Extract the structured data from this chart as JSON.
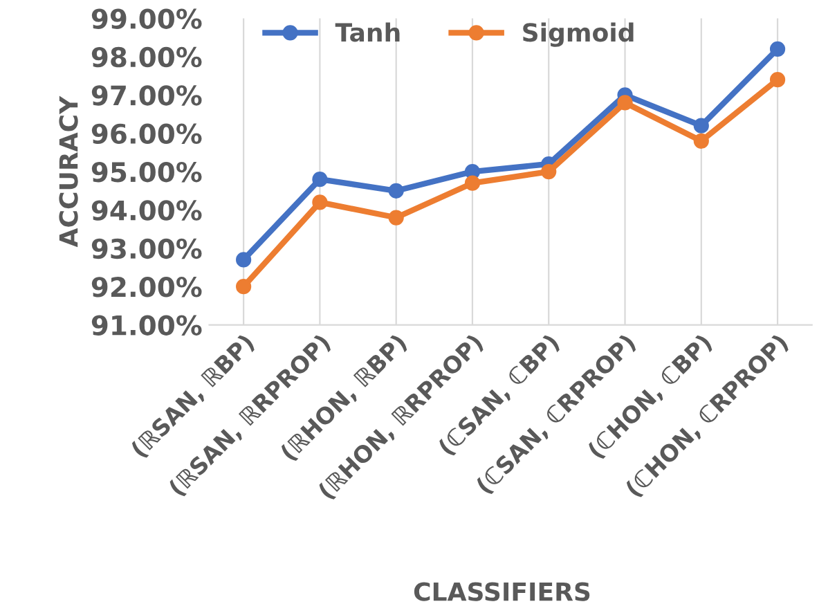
{
  "chart_data": {
    "type": "line",
    "xlabel": "CLASSIFIERS",
    "ylabel": "ACCURACY",
    "categories": [
      "(ℝSAN, ℝBP)",
      "(ℝSAN, ℝRPROP)",
      "(ℝHON, ℝBP)",
      "(ℝHON, ℝRPROP)",
      "(ℂSAN, ℂBP)",
      "(ℂSAN, ℂRPROP)",
      "(ℂHON, ℂBP)",
      "(ℂHON, ℂRPROP)"
    ],
    "series": [
      {
        "name": "Tanh",
        "color": "#4472c4",
        "values": [
          92.7,
          94.8,
          94.5,
          95.0,
          95.2,
          97.0,
          96.2,
          98.2
        ]
      },
      {
        "name": "Sigmoid",
        "color": "#ed7d31",
        "values": [
          92.0,
          94.2,
          93.8,
          94.7,
          95.0,
          96.8,
          95.8,
          97.4
        ]
      }
    ],
    "ylim": [
      91,
      99
    ],
    "yticks": [
      {
        "value": 91,
        "label": "91.00%"
      },
      {
        "value": 92,
        "label": "92.00%"
      },
      {
        "value": 93,
        "label": "93.00%"
      },
      {
        "value": 94,
        "label": "94.00%"
      },
      {
        "value": 95,
        "label": "95.00%"
      },
      {
        "value": 96,
        "label": "96.00%"
      },
      {
        "value": 97,
        "label": "97.00%"
      },
      {
        "value": 98,
        "label": "98.00%"
      },
      {
        "value": 99,
        "label": "99.00%"
      }
    ],
    "grid": "x",
    "legend": "top",
    "marker": "circle",
    "line_style": "solid"
  }
}
